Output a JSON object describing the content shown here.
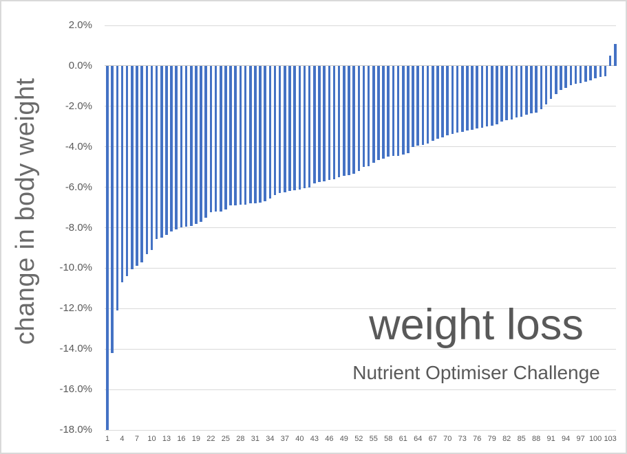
{
  "chart_data": {
    "type": "bar",
    "title": "weight loss",
    "subtitle": "Nutrient Optimiser Challenge",
    "xlabel": "",
    "ylabel": "change in body weight",
    "unit": "%",
    "ylim": [
      -18,
      2
    ],
    "grid": true,
    "legend": false,
    "sorted": "ascending weight change, most loss first",
    "y_axis": {
      "ticks": [
        {
          "label": "2.0%",
          "value": 2
        },
        {
          "label": "0.0%",
          "value": 0
        },
        {
          "label": "-2.0%",
          "value": -2
        },
        {
          "label": "-4.0%",
          "value": -4
        },
        {
          "label": "-6.0%",
          "value": -6
        },
        {
          "label": "-8.0%",
          "value": -8
        },
        {
          "label": "-10.0%",
          "value": -10
        },
        {
          "label": "-12.0%",
          "value": -12
        },
        {
          "label": "-14.0%",
          "value": -14
        },
        {
          "label": "-16.0%",
          "value": -16
        },
        {
          "label": "-18.0%",
          "value": -18
        }
      ]
    },
    "x_axis": {
      "tick_labels": [
        "1",
        "4",
        "7",
        "10",
        "13",
        "16",
        "19",
        "22",
        "25",
        "28",
        "31",
        "34",
        "37",
        "40",
        "43",
        "46",
        "49",
        "52",
        "55",
        "58",
        "61",
        "64",
        "67",
        "70",
        "73",
        "76",
        "79",
        "82",
        "85",
        "88",
        "91",
        "94",
        "97",
        "100",
        "103"
      ],
      "tick_step": 3,
      "first_category": 1,
      "n_categories": 104
    },
    "values": [
      -18.0,
      -14.2,
      -12.1,
      -10.7,
      -10.4,
      -10.05,
      -9.9,
      -9.7,
      -9.3,
      -9.1,
      -8.55,
      -8.5,
      -8.35,
      -8.2,
      -8.1,
      -8.0,
      -7.95,
      -7.9,
      -7.8,
      -7.7,
      -7.5,
      -7.25,
      -7.2,
      -7.2,
      -7.1,
      -6.9,
      -6.9,
      -6.85,
      -6.85,
      -6.8,
      -6.8,
      -6.75,
      -6.7,
      -6.55,
      -6.4,
      -6.3,
      -6.25,
      -6.2,
      -6.15,
      -6.1,
      -6.05,
      -6.0,
      -5.8,
      -5.75,
      -5.7,
      -5.65,
      -5.6,
      -5.5,
      -5.45,
      -5.4,
      -5.35,
      -5.2,
      -5.0,
      -4.95,
      -4.8,
      -4.65,
      -4.6,
      -4.5,
      -4.45,
      -4.45,
      -4.4,
      -4.3,
      -4.0,
      -3.95,
      -3.9,
      -3.85,
      -3.7,
      -3.6,
      -3.55,
      -3.45,
      -3.35,
      -3.3,
      -3.25,
      -3.2,
      -3.15,
      -3.1,
      -3.05,
      -3.0,
      -2.95,
      -2.9,
      -2.75,
      -2.7,
      -2.65,
      -2.55,
      -2.5,
      -2.4,
      -2.35,
      -2.3,
      -2.15,
      -1.9,
      -1.65,
      -1.4,
      -1.2,
      -1.1,
      -0.95,
      -0.9,
      -0.85,
      -0.8,
      -0.7,
      -0.6,
      -0.55,
      -0.5,
      0.5,
      1.1
    ],
    "colors": {
      "bar": "#4472C4",
      "gridline": "#D9D9D9",
      "zero_axis": "#C6C6C6",
      "tick_text": "#595959",
      "axis_title_text": "#6B6B6B",
      "title_text": "#595959",
      "border": "#D9D9D9",
      "background": "#FFFFFF"
    }
  }
}
